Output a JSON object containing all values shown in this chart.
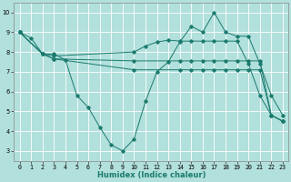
{
  "xlabel": "Humidex (Indice chaleur)",
  "ylabel": "",
  "xlim": [
    -0.5,
    23.5
  ],
  "ylim": [
    2.5,
    10.5
  ],
  "background_color": "#b2e0dc",
  "grid_color": "#ffffff",
  "line_color": "#1a7a6e",
  "lines": [
    {
      "x": [
        0,
        1,
        2,
        3,
        4,
        5,
        6,
        7,
        8,
        9,
        10,
        11,
        12,
        13,
        14,
        15,
        16,
        17,
        18,
        19,
        20,
        21,
        22,
        23
      ],
      "y": [
        9,
        8.7,
        7.9,
        7.9,
        7.6,
        5.8,
        5.2,
        4.2,
        3.3,
        3.0,
        3.6,
        5.5,
        7.0,
        7.5,
        8.5,
        9.3,
        9.0,
        10.0,
        9.0,
        8.8,
        8.8,
        7.4,
        5.8,
        4.8
      ]
    },
    {
      "x": [
        0,
        2,
        3,
        10,
        11,
        12,
        13,
        14,
        15,
        16,
        17,
        18,
        19,
        20,
        21,
        22,
        23
      ],
      "y": [
        9,
        7.9,
        7.8,
        8.0,
        8.3,
        8.5,
        8.6,
        8.55,
        8.55,
        8.55,
        8.55,
        8.55,
        8.55,
        7.4,
        5.8,
        4.8,
        4.5
      ]
    },
    {
      "x": [
        0,
        2,
        3,
        10,
        14,
        15,
        16,
        17,
        18,
        19,
        20,
        21,
        22,
        23
      ],
      "y": [
        9,
        7.9,
        7.65,
        7.55,
        7.55,
        7.55,
        7.55,
        7.55,
        7.55,
        7.55,
        7.55,
        7.55,
        4.8,
        4.5
      ]
    },
    {
      "x": [
        0,
        2,
        3,
        10,
        14,
        15,
        16,
        17,
        18,
        19,
        20,
        21,
        22,
        23
      ],
      "y": [
        9,
        7.9,
        7.65,
        7.1,
        7.1,
        7.1,
        7.1,
        7.1,
        7.1,
        7.1,
        7.1,
        7.1,
        4.8,
        4.5
      ]
    }
  ],
  "xticks": [
    0,
    1,
    2,
    3,
    4,
    5,
    6,
    7,
    8,
    9,
    10,
    11,
    12,
    13,
    14,
    15,
    16,
    17,
    18,
    19,
    20,
    21,
    22,
    23
  ],
  "yticks": [
    3,
    4,
    5,
    6,
    7,
    8,
    9,
    10
  ],
  "axis_fontsize": 5.5,
  "tick_fontsize": 4.8,
  "xlabel_fontsize": 6.0
}
